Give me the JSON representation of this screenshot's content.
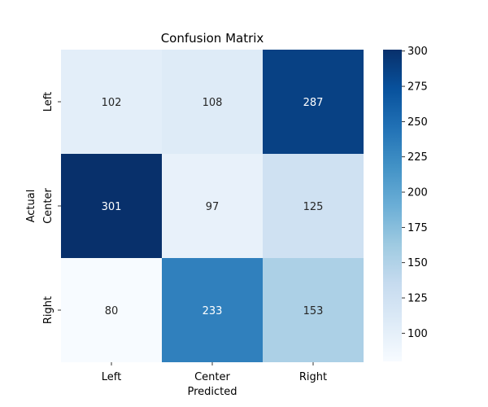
{
  "chart_data": {
    "type": "heatmap",
    "title": "Confusion Matrix",
    "xlabel": "Predicted",
    "ylabel": "Actual",
    "x_categories": [
      "Left",
      "Center",
      "Right"
    ],
    "y_categories": [
      "Left",
      "Center",
      "Right"
    ],
    "values": [
      [
        102,
        108,
        287
      ],
      [
        301,
        97,
        125
      ],
      [
        80,
        233,
        153
      ]
    ],
    "colormap": "Blues",
    "colorbar": {
      "min": 80,
      "max": 301,
      "ticks": [
        100,
        125,
        150,
        175,
        200,
        225,
        250,
        275,
        300
      ]
    },
    "annotations": true
  }
}
